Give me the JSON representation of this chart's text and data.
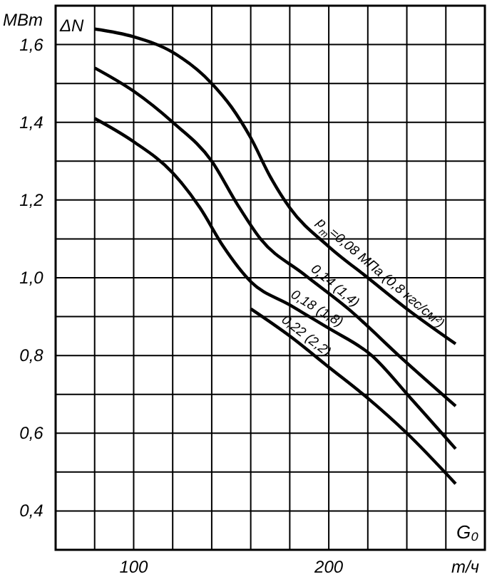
{
  "chart_data": {
    "type": "line",
    "xlabel": "G₀",
    "ylabel": "ΔN",
    "annotations": [
      "МВт",
      "т/ч"
    ],
    "xlim": [
      60,
      280
    ],
    "ylim": [
      0.3,
      1.7
    ],
    "xticks": [
      {
        "value": 60,
        "label": null
      },
      {
        "value": 80,
        "label": null
      },
      100,
      {
        "value": 120,
        "label": null
      },
      {
        "value": 140,
        "label": null
      },
      {
        "value": 160,
        "label": null
      },
      {
        "value": 180,
        "label": null
      },
      200,
      {
        "value": 220,
        "label": null
      },
      {
        "value": 240,
        "label": null
      },
      {
        "value": 260,
        "label": null
      },
      {
        "value": 280,
        "label": null
      }
    ],
    "yticks": [
      {
        "value": 0.3,
        "label": null
      },
      {
        "value": 0.4,
        "label": "0,4"
      },
      {
        "value": 0.5,
        "label": null
      },
      {
        "value": 0.6,
        "label": "0,6"
      },
      {
        "value": 0.7,
        "label": null
      },
      {
        "value": 0.8,
        "label": "0,8"
      },
      {
        "value": 0.9,
        "label": null
      },
      {
        "value": 1.0,
        "label": "1,0"
      },
      {
        "value": 1.1,
        "label": null
      },
      {
        "value": 1.2,
        "label": "1,2"
      },
      {
        "value": 1.3,
        "label": null
      },
      {
        "value": 1.4,
        "label": "1,4"
      },
      {
        "value": 1.5,
        "label": null
      },
      {
        "value": 1.6,
        "label": "1,6"
      },
      {
        "value": 1.7,
        "label": null
      }
    ],
    "grid": true,
    "marker": "none",
    "line_style": "solid",
    "series": [
      {
        "name": "p$_{т}$=0,08 МПа (0,8 кгс/см²)",
        "color": "#000000",
        "x": [
          80,
          100,
          120,
          140,
          150,
          160,
          170,
          180,
          200,
          220,
          240,
          265
        ],
        "values": [
          1.64,
          1.62,
          1.58,
          1.5,
          1.44,
          1.36,
          1.26,
          1.18,
          1.08,
          1.0,
          0.92,
          0.83
        ]
      },
      {
        "name": "0,14 (1,4)",
        "color": "#000000",
        "x": [
          80,
          100,
          120,
          140,
          153,
          165,
          187,
          210,
          238,
          265
        ],
        "values": [
          1.54,
          1.48,
          1.4,
          1.3,
          1.19,
          1.1,
          1.01,
          0.92,
          0.79,
          0.67
        ]
      },
      {
        "name": "0,18 (1,8)",
        "color": "#000000",
        "x": [
          80,
          100,
          120,
          134,
          146,
          160,
          180,
          200,
          222,
          242,
          265
        ],
        "values": [
          1.41,
          1.35,
          1.27,
          1.18,
          1.08,
          0.99,
          0.93,
          0.87,
          0.8,
          0.69,
          0.56
        ]
      },
      {
        "name": "0,22 (2,2)",
        "color": "#000000",
        "x": [
          160,
          180,
          200,
          220,
          240,
          265
        ],
        "values": [
          0.92,
          0.85,
          0.77,
          0.69,
          0.6,
          0.47
        ]
      }
    ]
  }
}
